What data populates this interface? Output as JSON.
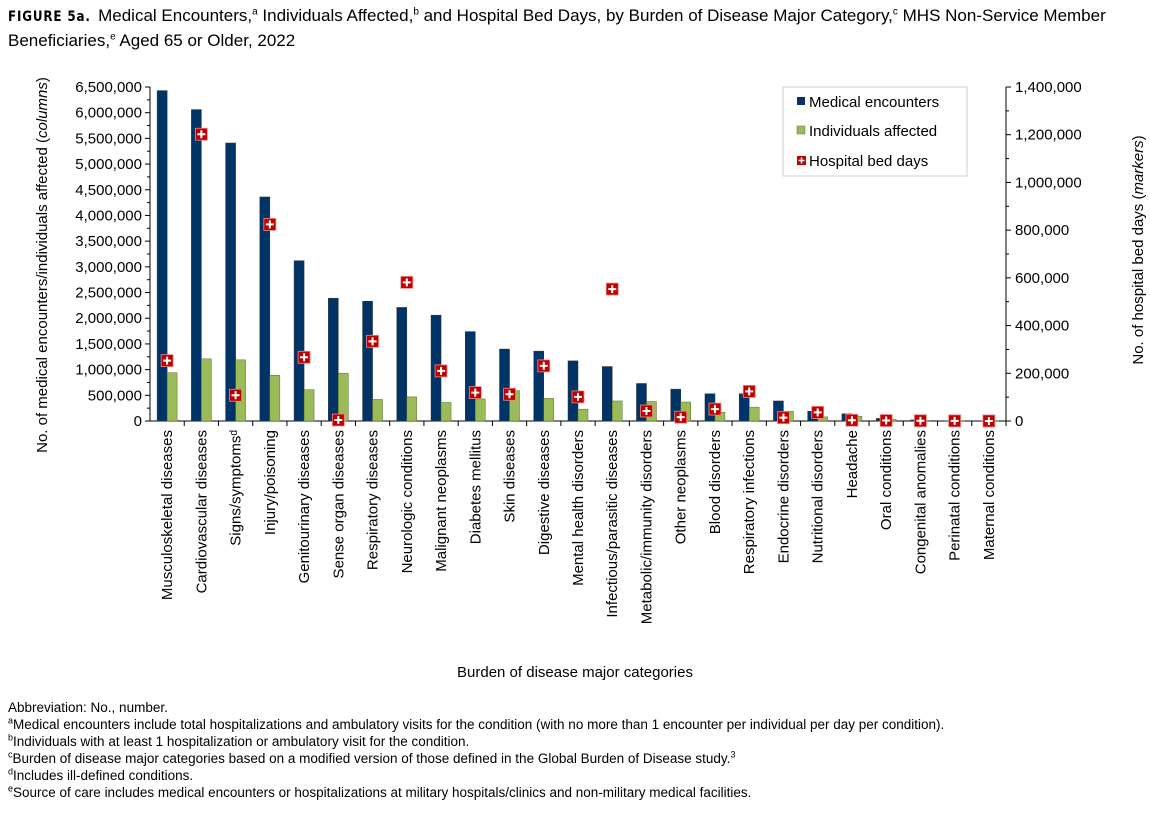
{
  "title": {
    "figure_label": "FIGURE 5a.",
    "parts": [
      "Medical Encounters,",
      "a",
      " Individuals Affected,",
      "b",
      " and Hospital Bed Days, by Burden of Disease Major Category,",
      "c",
      " MHS Non-Service Member Beneficiaries,",
      "e",
      " Aged 65 or Older, 2022"
    ]
  },
  "chart_data": {
    "type": "bar",
    "xlabel": "Burden of disease major categories",
    "ylabel_left": "No. of medical encounters/individuals affected (",
    "ylabel_left_italic": "columns",
    "ylabel_left_end": ")",
    "ylabel_right": "No. of hospital bed days (",
    "ylabel_right_italic": "markers",
    "ylabel_right_end": ")",
    "ylim_left": [
      0,
      6500000
    ],
    "ylim_right": [
      0,
      1400000
    ],
    "yticks_left": [
      "0",
      "500,000",
      "1,000,000",
      "1,500,000",
      "2,000,000",
      "2,500,000",
      "3,000,000",
      "3,500,000",
      "4,000,000",
      "4,500,000",
      "5,000,000",
      "5,500,000",
      "6,000,000",
      "6,500,000"
    ],
    "yticks_right": [
      "0",
      "200,000",
      "400,000",
      "600,000",
      "800,000",
      "1,000,000",
      "1,200,000",
      "1,400,000"
    ],
    "grid": false,
    "legend_position": "top-right",
    "categories": [
      "Musculoskeletal diseases",
      "Cardiovascular diseases",
      "Signs/symptomsᵈ",
      "Injury/poisoning",
      "Genitourinary diseases",
      "Sense organ diseases",
      "Respiratory diseases",
      "Neurologic conditions",
      "Malignant neoplasms",
      "Diabetes mellitus",
      "Skin diseases",
      "Digestive diseases",
      "Mental health disorders",
      "Infectious/parasitic diseases",
      "Metabolic/immunity disorders",
      "Other neoplasms",
      "Blood disorders",
      "Respiratory infections",
      "Endocrine disorders",
      "Nutritional disorders",
      "Headache",
      "Oral conditions",
      "Congenital anomalies",
      "Perinatal conditions",
      "Maternal conditions"
    ],
    "series": [
      {
        "name": "Medical encounters",
        "type": "bar",
        "axis": "left",
        "color": "#003366",
        "values": [
          6430000,
          6060000,
          5410000,
          4360000,
          3120000,
          2390000,
          2330000,
          2210000,
          2060000,
          1740000,
          1400000,
          1360000,
          1170000,
          1060000,
          730000,
          620000,
          530000,
          530000,
          390000,
          190000,
          140000,
          50000,
          20000,
          2000,
          500
        ]
      },
      {
        "name": "Individuals affected",
        "type": "bar",
        "axis": "left",
        "color": "#9BBB59",
        "values": [
          940000,
          1210000,
          1190000,
          890000,
          610000,
          930000,
          420000,
          470000,
          360000,
          430000,
          590000,
          440000,
          230000,
          390000,
          380000,
          370000,
          170000,
          270000,
          190000,
          80000,
          90000,
          30000,
          10000,
          1000,
          300
        ]
      },
      {
        "name": "Hospital bed days",
        "type": "marker",
        "axis": "right",
        "color": "#C00000",
        "values": [
          253000,
          1202000,
          108000,
          824000,
          267000,
          4000,
          334000,
          581000,
          210000,
          119000,
          112000,
          231000,
          101000,
          553000,
          42000,
          16000,
          50000,
          124000,
          14000,
          36000,
          3000,
          2000,
          1000,
          500,
          200
        ]
      }
    ]
  },
  "notes": [
    {
      "sup": "",
      "text": "Abbreviation: No., number."
    },
    {
      "sup": "a",
      "text": "Medical encounters include total hospitalizations and ambulatory visits for the condition (with no more than 1 encounter per individual per day per condition)."
    },
    {
      "sup": "b",
      "text": "Individuals with at least 1 hospitalization or ambulatory visit for the condition."
    },
    {
      "sup": "c",
      "text": "Burden of disease major categories based on a modified version of those defined in the Global Burden of Disease study.",
      "end_sup": "3"
    },
    {
      "sup": "d",
      "text": "Includes ill-defined conditions."
    },
    {
      "sup": "e",
      "text": "Source of care includes medical encounters or hospitalizations at military hospitals/clinics and non-military medical facilities."
    }
  ]
}
